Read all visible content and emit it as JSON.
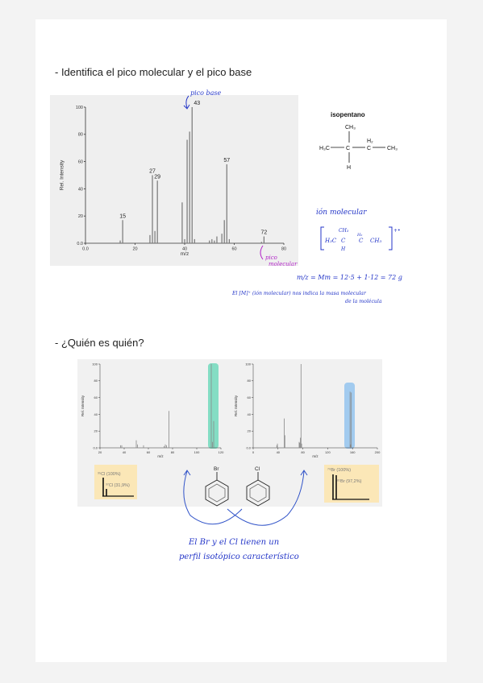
{
  "colors": {
    "ink_blue": "#2436c8",
    "ink_purple": "#b226c8",
    "teal_highlight": "#5fd6b4",
    "blue_highlight": "#8ec2ef",
    "yellow_box": "#fbe7b7",
    "bar": "#777777"
  },
  "section1": {
    "heading": "- Identifica el pico molecular y el pico base",
    "structure": {
      "name": "isopentano",
      "ch3_top": "CH₃",
      "h2": "H₂",
      "h3c": "H₃C",
      "c_center": "C",
      "c_right": "C",
      "ch3_right": "CH₃",
      "h_bottom": "H"
    },
    "annotations": {
      "pico_base": "pico base",
      "pico_molecular_1": "pico",
      "pico_molecular_2": "molecular",
      "ion_molecular": "ión molecular",
      "ion_formula_ch3": "CH₃",
      "ion_formula_h3c": "H₃C",
      "ion_formula_c": "C",
      "ion_formula_h2": "H₂",
      "ion_formula_cprime": "C",
      "ion_formula_right": "CH₃",
      "ion_formula_h": "H",
      "ion_charge": "+•",
      "mass_calc": "m/z = Mm = 12·5 + 1·12 = 72 g",
      "note_line1": "El [M]⁺ (ión molecular) nos indica la masa molecular",
      "note_line2": "de la molécula"
    }
  },
  "section2": {
    "heading": "- ¿Quién es quién?",
    "cl_box": {
      "label1": "³⁵Cl (100%)",
      "label2": "³⁷Cl (31,9%)"
    },
    "br_box": {
      "label1": "⁷⁹Br (100%)",
      "label2": "⁸¹Br (97,2%)"
    },
    "molecules": {
      "br": "Br",
      "cl": "Cl"
    },
    "note_line1": "El Br y el Cl tienen un",
    "note_line2": "perfil isotópico característico"
  },
  "chart_data": [
    {
      "type": "bar",
      "xlabel": "m/z",
      "ylabel": "Rel. Intensity",
      "xlim": [
        0,
        80
      ],
      "ylim": [
        0,
        100
      ],
      "xticks": [
        "0.0",
        "20",
        "40",
        "60",
        "80"
      ],
      "yticks": [
        "0.0",
        "20",
        "40",
        "60",
        "80",
        "100"
      ],
      "x": [
        14,
        15,
        26,
        27,
        28,
        29,
        39,
        40,
        41,
        42,
        43,
        44,
        50,
        51,
        52,
        53,
        55,
        56,
        57,
        58,
        71,
        72
      ],
      "values": [
        2,
        17,
        6,
        50,
        9,
        46,
        30,
        3,
        76,
        82,
        100,
        3,
        2,
        3,
        2,
        5,
        7,
        17,
        58,
        3,
        1,
        5
      ],
      "peak_labels": [
        {
          "x": 15,
          "label": "15"
        },
        {
          "x": 27,
          "label": "27"
        },
        {
          "x": 29,
          "label": "29"
        },
        {
          "x": 43,
          "label": "43"
        },
        {
          "x": 57,
          "label": "57"
        },
        {
          "x": 72,
          "label": "72"
        }
      ]
    },
    {
      "type": "bar",
      "xlabel": "m/z",
      "ylabel": "Rel. Intensity",
      "xlim": [
        20,
        120
      ],
      "ylim": [
        0,
        100
      ],
      "xticks": [
        "20",
        "40",
        "60",
        "80",
        "100",
        "120"
      ],
      "yticks": [
        "0.0",
        "20",
        "40",
        "60",
        "80",
        "100"
      ],
      "x": [
        37,
        38,
        50,
        51,
        56,
        73,
        74,
        75,
        77,
        112,
        113,
        114
      ],
      "values": [
        3,
        3,
        9,
        4,
        3,
        2,
        4,
        3,
        44,
        100,
        7,
        32
      ]
    },
    {
      "type": "bar",
      "xlabel": "m/z",
      "ylabel": "Rel. Intensity",
      "xlim": [
        0,
        200
      ],
      "ylim": [
        0,
        100
      ],
      "xticks": [
        "0",
        "40",
        "80",
        "120",
        "160",
        "200"
      ],
      "yticks": [
        "0.0",
        "20",
        "40",
        "60",
        "80",
        "100"
      ],
      "x": [
        38,
        39,
        50,
        51,
        74,
        75,
        76,
        77,
        78,
        156,
        157,
        158
      ],
      "values": [
        3,
        5,
        35,
        15,
        7,
        6,
        12,
        100,
        5,
        67,
        4,
        66
      ]
    }
  ]
}
